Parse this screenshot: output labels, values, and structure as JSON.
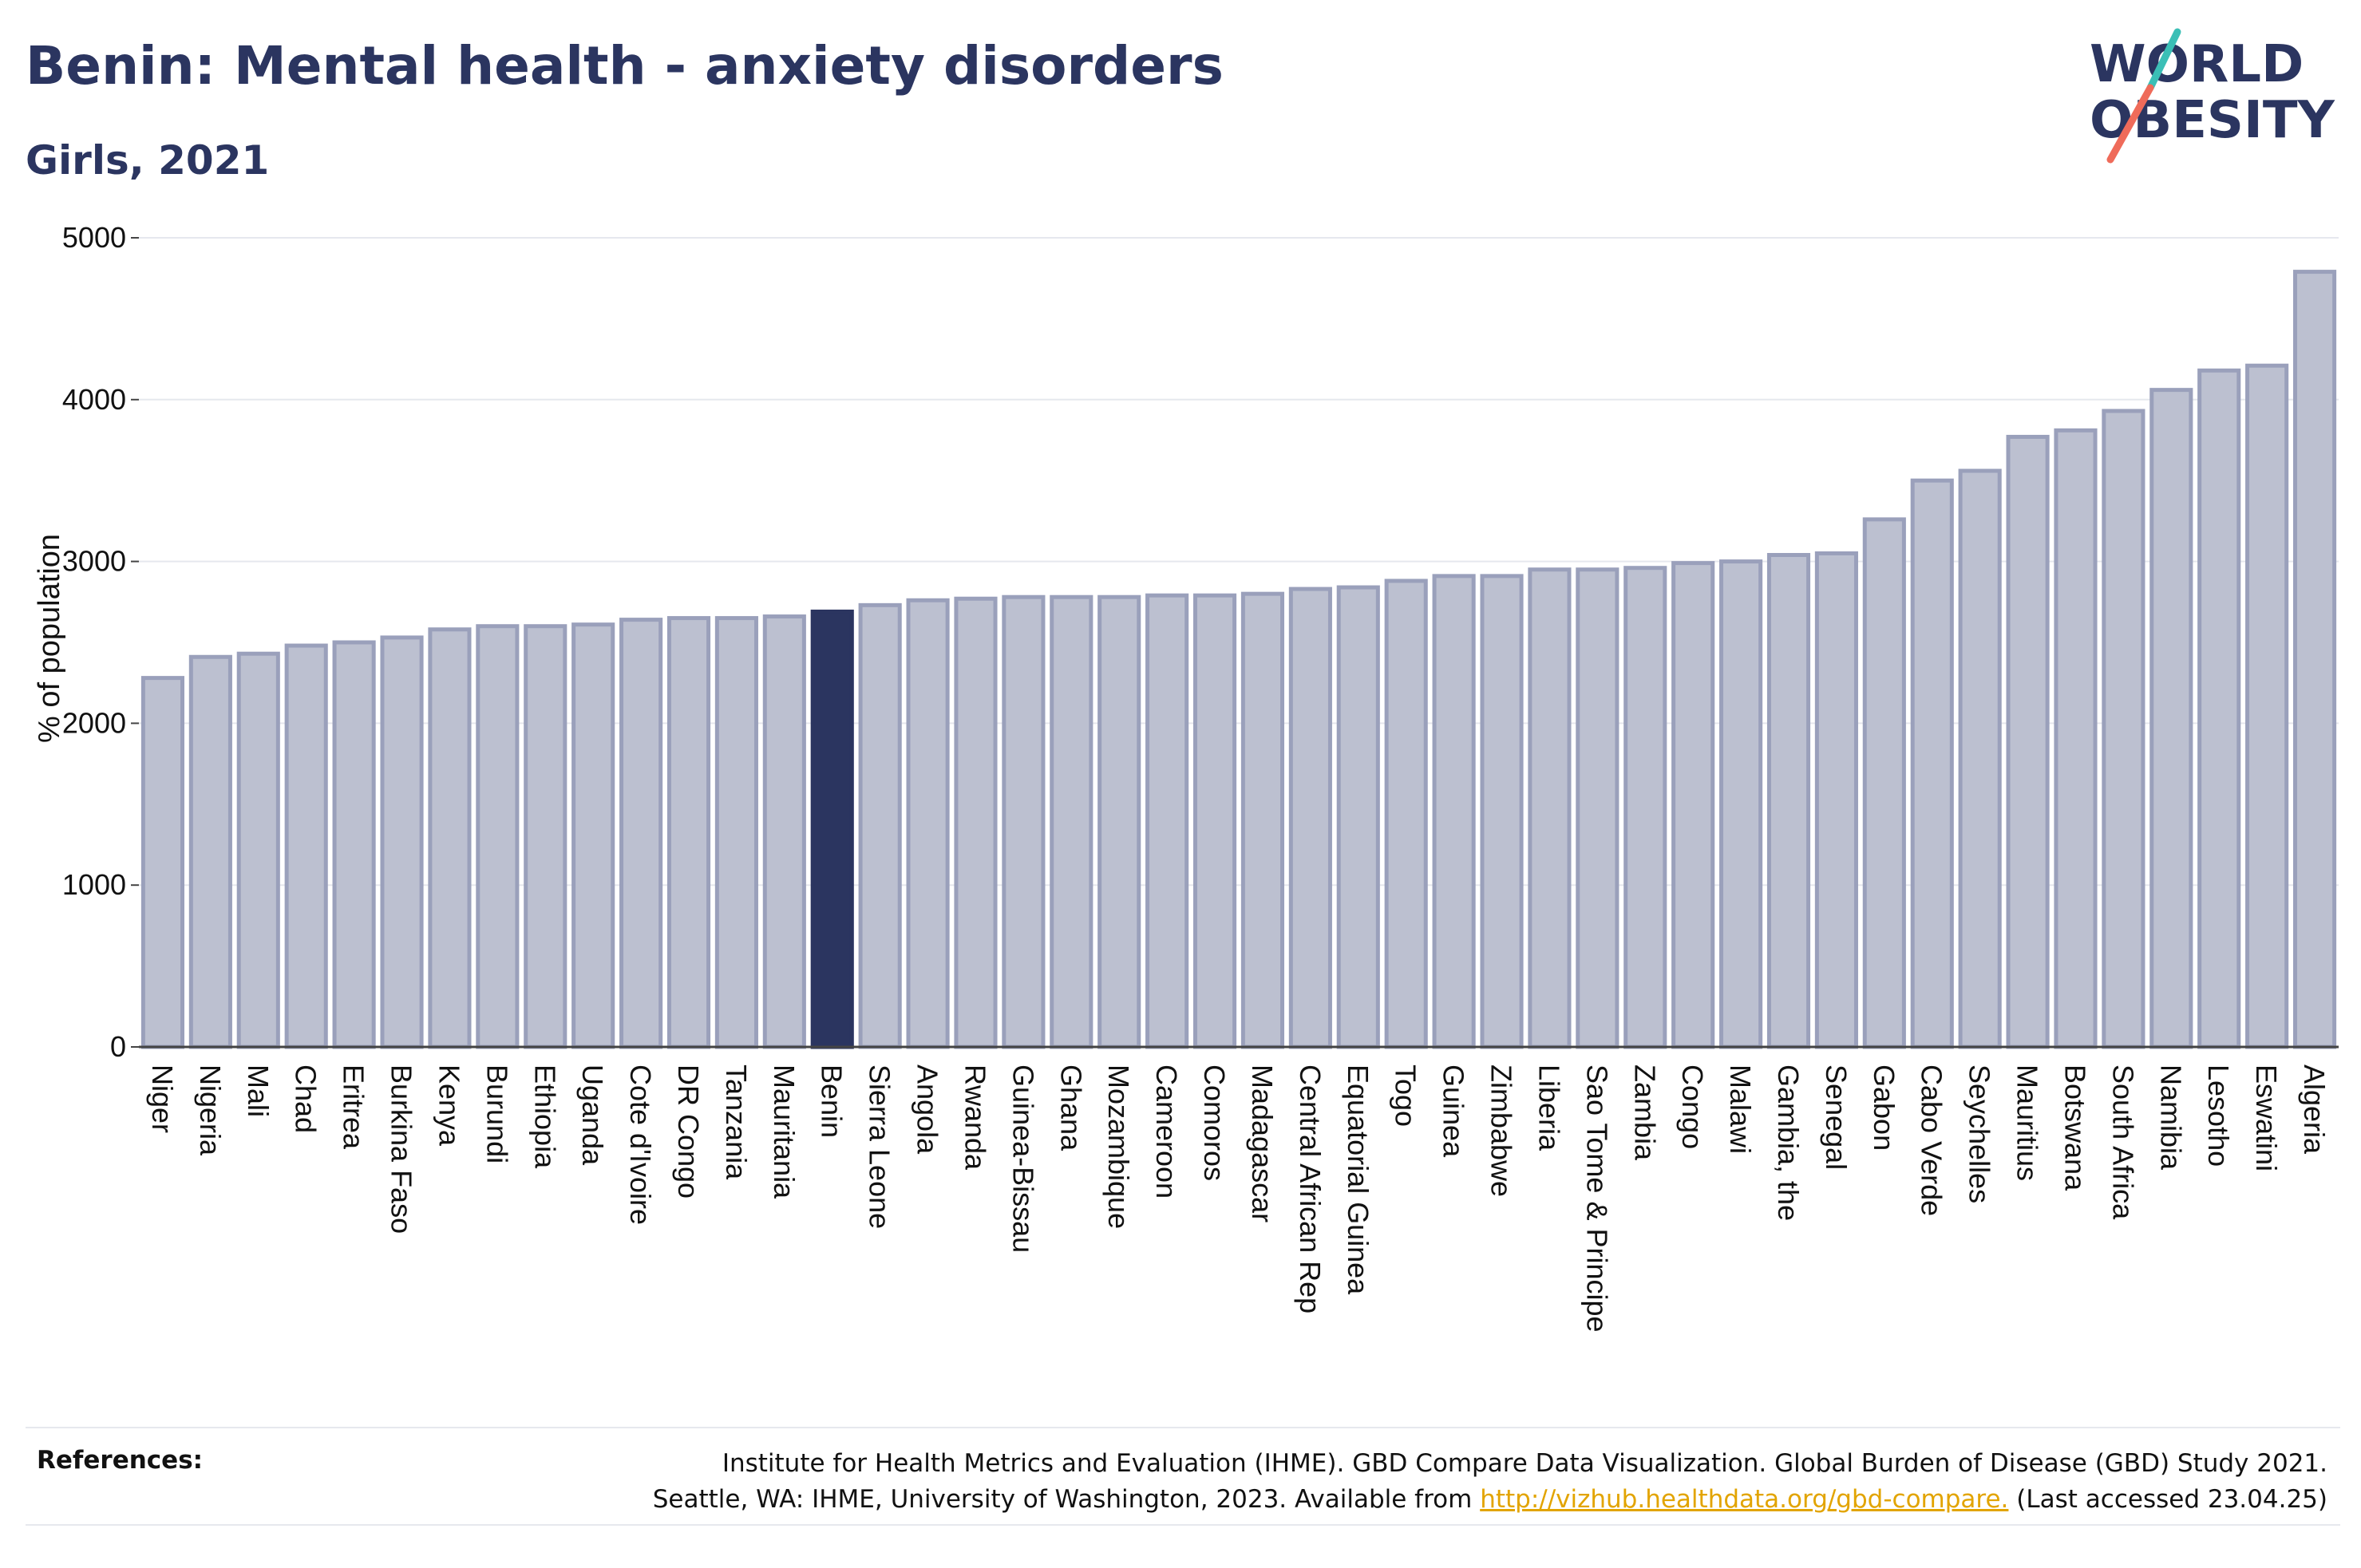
{
  "header": {
    "title": "Benin: Mental health - anxiety disorders",
    "subtitle": "Girls, 2021"
  },
  "logo": {
    "line1": "WORLD",
    "line2": "OBESITY"
  },
  "colors": {
    "bar": "#bcc0d0",
    "bar_border": "#9aa0bb",
    "highlight": "#2b3560",
    "text": "#2b3560",
    "link": "#e2a400",
    "grid": "#e6e8ee"
  },
  "chart_data": {
    "type": "bar",
    "title": "Benin: Mental health - anxiety disorders",
    "subtitle": "Girls, 2021",
    "ylabel": "% of population",
    "xlabel": "",
    "ylim": [
      0,
      5000
    ],
    "yticks": [
      0,
      1000,
      2000,
      3000,
      4000,
      5000
    ],
    "grid": true,
    "highlight": "Benin",
    "categories": [
      "Niger",
      "Nigeria",
      "Mali",
      "Chad",
      "Eritrea",
      "Burkina Faso",
      "Kenya",
      "Burundi",
      "Ethiopia",
      "Uganda",
      "Cote d'Ivoire",
      "DR Congo",
      "Tanzania",
      "Mauritania",
      "Benin",
      "Sierra Leone",
      "Angola",
      "Rwanda",
      "Guinea-Bissau",
      "Ghana",
      "Mozambique",
      "Cameroon",
      "Comoros",
      "Madagascar",
      "Central African Rep",
      "Equatorial Guinea",
      "Togo",
      "Guinea",
      "Zimbabwe",
      "Liberia",
      "Sao Tome & Principe",
      "Zambia",
      "Congo",
      "Malawi",
      "Gambia, the",
      "Senegal",
      "Gabon",
      "Cabo Verde",
      "Seychelles",
      "Mauritius",
      "Botswana",
      "South Africa",
      "Namibia",
      "Lesotho",
      "Eswatini",
      "Algeria"
    ],
    "values": [
      2280,
      2410,
      2430,
      2480,
      2500,
      2530,
      2580,
      2600,
      2600,
      2610,
      2640,
      2650,
      2650,
      2660,
      2690,
      2730,
      2760,
      2770,
      2780,
      2780,
      2780,
      2790,
      2790,
      2800,
      2830,
      2840,
      2880,
      2910,
      2910,
      2950,
      2950,
      2960,
      2990,
      3000,
      3040,
      3050,
      3260,
      3500,
      3560,
      3770,
      3810,
      3930,
      4060,
      4180,
      4210,
      4790
    ]
  },
  "footer": {
    "ref_label": "References:",
    "ref_line1": "Institute for Health Metrics and Evaluation (IHME). GBD Compare Data Visualization. Global Burden of Disease (GBD) Study 2021.",
    "ref_line2_pre": "Seattle, WA: IHME, University of Washington, 2023. Available from ",
    "ref_link": "http://vizhub.healthdata.org/gbd-compare.",
    "ref_line2_post": " (Last accessed 23.04.25)"
  }
}
